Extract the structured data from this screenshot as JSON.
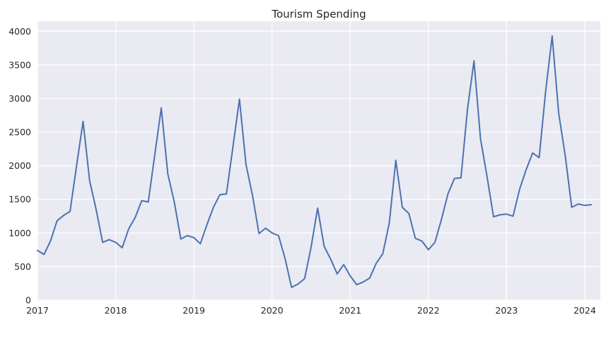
{
  "chart_data": {
    "type": "line",
    "title": "Tourism Spending",
    "xlabel": "",
    "ylabel": "",
    "xlim": [
      2017.0,
      2024.2
    ],
    "ylim": [
      0,
      4150
    ],
    "grid": true,
    "background": "#eaeaf2",
    "x_ticks": [
      {
        "value": 2017,
        "label": "2017"
      },
      {
        "value": 2018,
        "label": "2018"
      },
      {
        "value": 2019,
        "label": "2019"
      },
      {
        "value": 2020,
        "label": "2020"
      },
      {
        "value": 2021,
        "label": "2021"
      },
      {
        "value": 2022,
        "label": "2022"
      },
      {
        "value": 2023,
        "label": "2023"
      },
      {
        "value": 2024,
        "label": "2024"
      }
    ],
    "y_ticks": [
      {
        "value": 0,
        "label": "0"
      },
      {
        "value": 500,
        "label": "500"
      },
      {
        "value": 1000,
        "label": "1000"
      },
      {
        "value": 1500,
        "label": "1500"
      },
      {
        "value": 2000,
        "label": "2000"
      },
      {
        "value": 2500,
        "label": "2500"
      },
      {
        "value": 3000,
        "label": "3000"
      },
      {
        "value": 3500,
        "label": "3500"
      },
      {
        "value": 4000,
        "label": "4000"
      }
    ],
    "series": [
      {
        "color": "#4c72b0",
        "start_year": 2017,
        "monthly": true,
        "values": [
          740,
          680,
          880,
          1180,
          1260,
          1320,
          2000,
          2660,
          1780,
          1350,
          860,
          900,
          860,
          780,
          1060,
          1230,
          1480,
          1460,
          2160,
          2860,
          1880,
          1460,
          910,
          960,
          930,
          840,
          1120,
          1380,
          1570,
          1580,
          2280,
          2990,
          2020,
          1560,
          990,
          1070,
          1000,
          960,
          620,
          190,
          240,
          320,
          790,
          1370,
          800,
          610,
          390,
          530,
          360,
          230,
          270,
          330,
          550,
          690,
          1150,
          2080,
          1380,
          1290,
          920,
          880,
          750,
          860,
          1200,
          1580,
          1810,
          1820,
          2840,
          3560,
          2400,
          1840,
          1240,
          1270,
          1280,
          1250,
          1650,
          1940,
          2190,
          2120,
          3110,
          3930,
          2780,
          2150,
          1380,
          1430,
          1410,
          1420
        ]
      }
    ]
  }
}
